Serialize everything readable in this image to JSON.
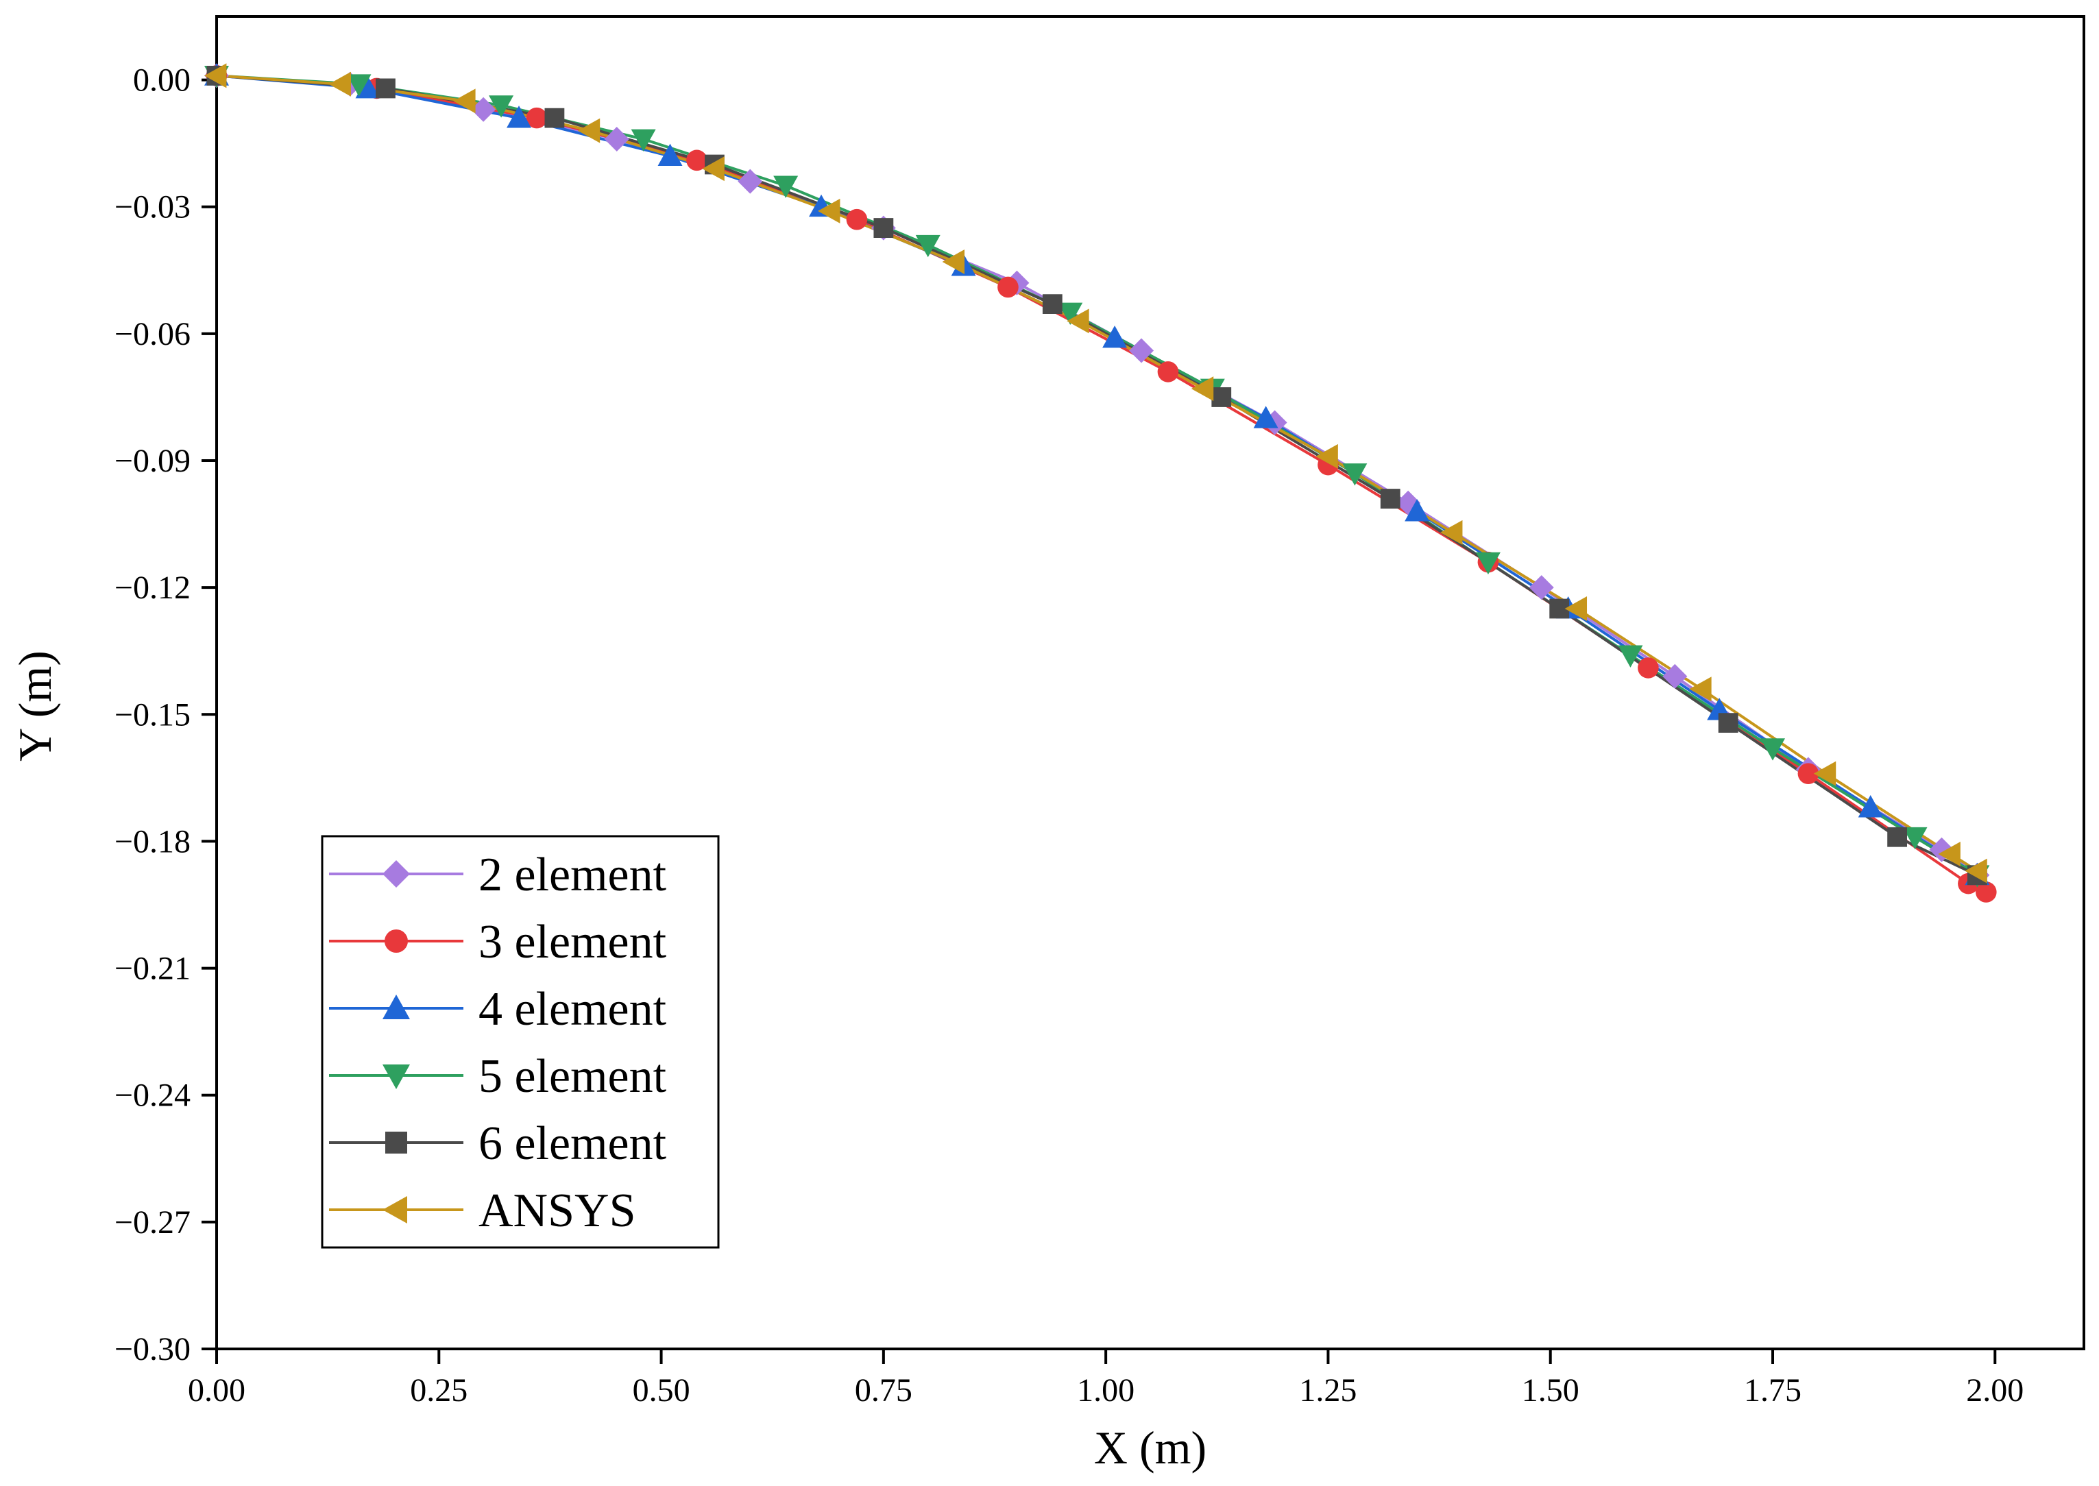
{
  "chart_data": {
    "type": "line",
    "xlabel": "X (m)",
    "ylabel": "Y (m)",
    "xlim": [
      0,
      2.1
    ],
    "ylim": [
      -0.3,
      0.015
    ],
    "xticks": [
      "0.00",
      "0.25",
      "0.50",
      "0.75",
      "1.00",
      "1.25",
      "1.50",
      "1.75",
      "2.00"
    ],
    "yticks": [
      "0.00",
      "−0.03",
      "−0.06",
      "−0.09",
      "−0.12",
      "−0.15",
      "−0.18",
      "−0.21",
      "−0.24",
      "−0.27",
      "−0.30"
    ],
    "grid": false,
    "legend_position": "lower-left",
    "series": [
      {
        "name": "2 element",
        "color": "#a77be0",
        "marker": "diamond",
        "x": [
          0.0,
          0.15,
          0.3,
          0.45,
          0.6,
          0.75,
          0.9,
          1.04,
          1.19,
          1.34,
          1.49,
          1.64,
          1.79,
          1.94,
          1.98
        ],
        "y": [
          0.001,
          -0.001,
          -0.007,
          -0.014,
          -0.024,
          -0.035,
          -0.048,
          -0.064,
          -0.081,
          -0.1,
          -0.12,
          -0.141,
          -0.163,
          -0.182,
          -0.188
        ]
      },
      {
        "name": "3 element",
        "color": "#e8383b",
        "marker": "circle",
        "x": [
          0.0,
          0.18,
          0.36,
          0.54,
          0.72,
          0.89,
          1.07,
          1.25,
          1.43,
          1.61,
          1.79,
          1.97,
          1.99
        ],
        "y": [
          0.001,
          -0.002,
          -0.009,
          -0.019,
          -0.033,
          -0.049,
          -0.069,
          -0.091,
          -0.114,
          -0.139,
          -0.164,
          -0.19,
          -0.192
        ]
      },
      {
        "name": "4 element",
        "color": "#1f66d6",
        "marker": "triangle-up",
        "x": [
          0.0,
          0.17,
          0.34,
          0.51,
          0.68,
          0.84,
          1.01,
          1.18,
          1.35,
          1.52,
          1.69,
          1.86,
          1.98
        ],
        "y": [
          0.001,
          -0.002,
          -0.009,
          -0.018,
          -0.03,
          -0.044,
          -0.061,
          -0.08,
          -0.102,
          -0.125,
          -0.149,
          -0.172,
          -0.188
        ]
      },
      {
        "name": "5 element",
        "color": "#2ea05f",
        "marker": "triangle-down",
        "x": [
          0.0,
          0.16,
          0.32,
          0.48,
          0.64,
          0.8,
          0.96,
          1.12,
          1.28,
          1.43,
          1.59,
          1.75,
          1.91,
          1.98
        ],
        "y": [
          0.001,
          -0.001,
          -0.006,
          -0.014,
          -0.025,
          -0.039,
          -0.055,
          -0.073,
          -0.093,
          -0.114,
          -0.136,
          -0.158,
          -0.179,
          -0.188
        ]
      },
      {
        "name": "6 element",
        "color": "#4a4a4a",
        "marker": "square",
        "x": [
          0.0,
          0.19,
          0.38,
          0.56,
          0.75,
          0.94,
          1.13,
          1.32,
          1.51,
          1.7,
          1.89,
          1.98
        ],
        "y": [
          0.001,
          -0.002,
          -0.009,
          -0.02,
          -0.035,
          -0.053,
          -0.075,
          -0.099,
          -0.125,
          -0.152,
          -0.179,
          -0.188
        ]
      },
      {
        "name": "ANSYS",
        "color": "#c7961b",
        "marker": "triangle-left",
        "x": [
          0.0,
          0.14,
          0.28,
          0.42,
          0.56,
          0.69,
          0.83,
          0.97,
          1.11,
          1.25,
          1.39,
          1.53,
          1.67,
          1.81,
          1.95,
          1.98
        ],
        "y": [
          0.001,
          -0.001,
          -0.005,
          -0.012,
          -0.021,
          -0.031,
          -0.043,
          -0.057,
          -0.073,
          -0.089,
          -0.107,
          -0.125,
          -0.144,
          -0.164,
          -0.183,
          -0.187
        ]
      }
    ]
  }
}
